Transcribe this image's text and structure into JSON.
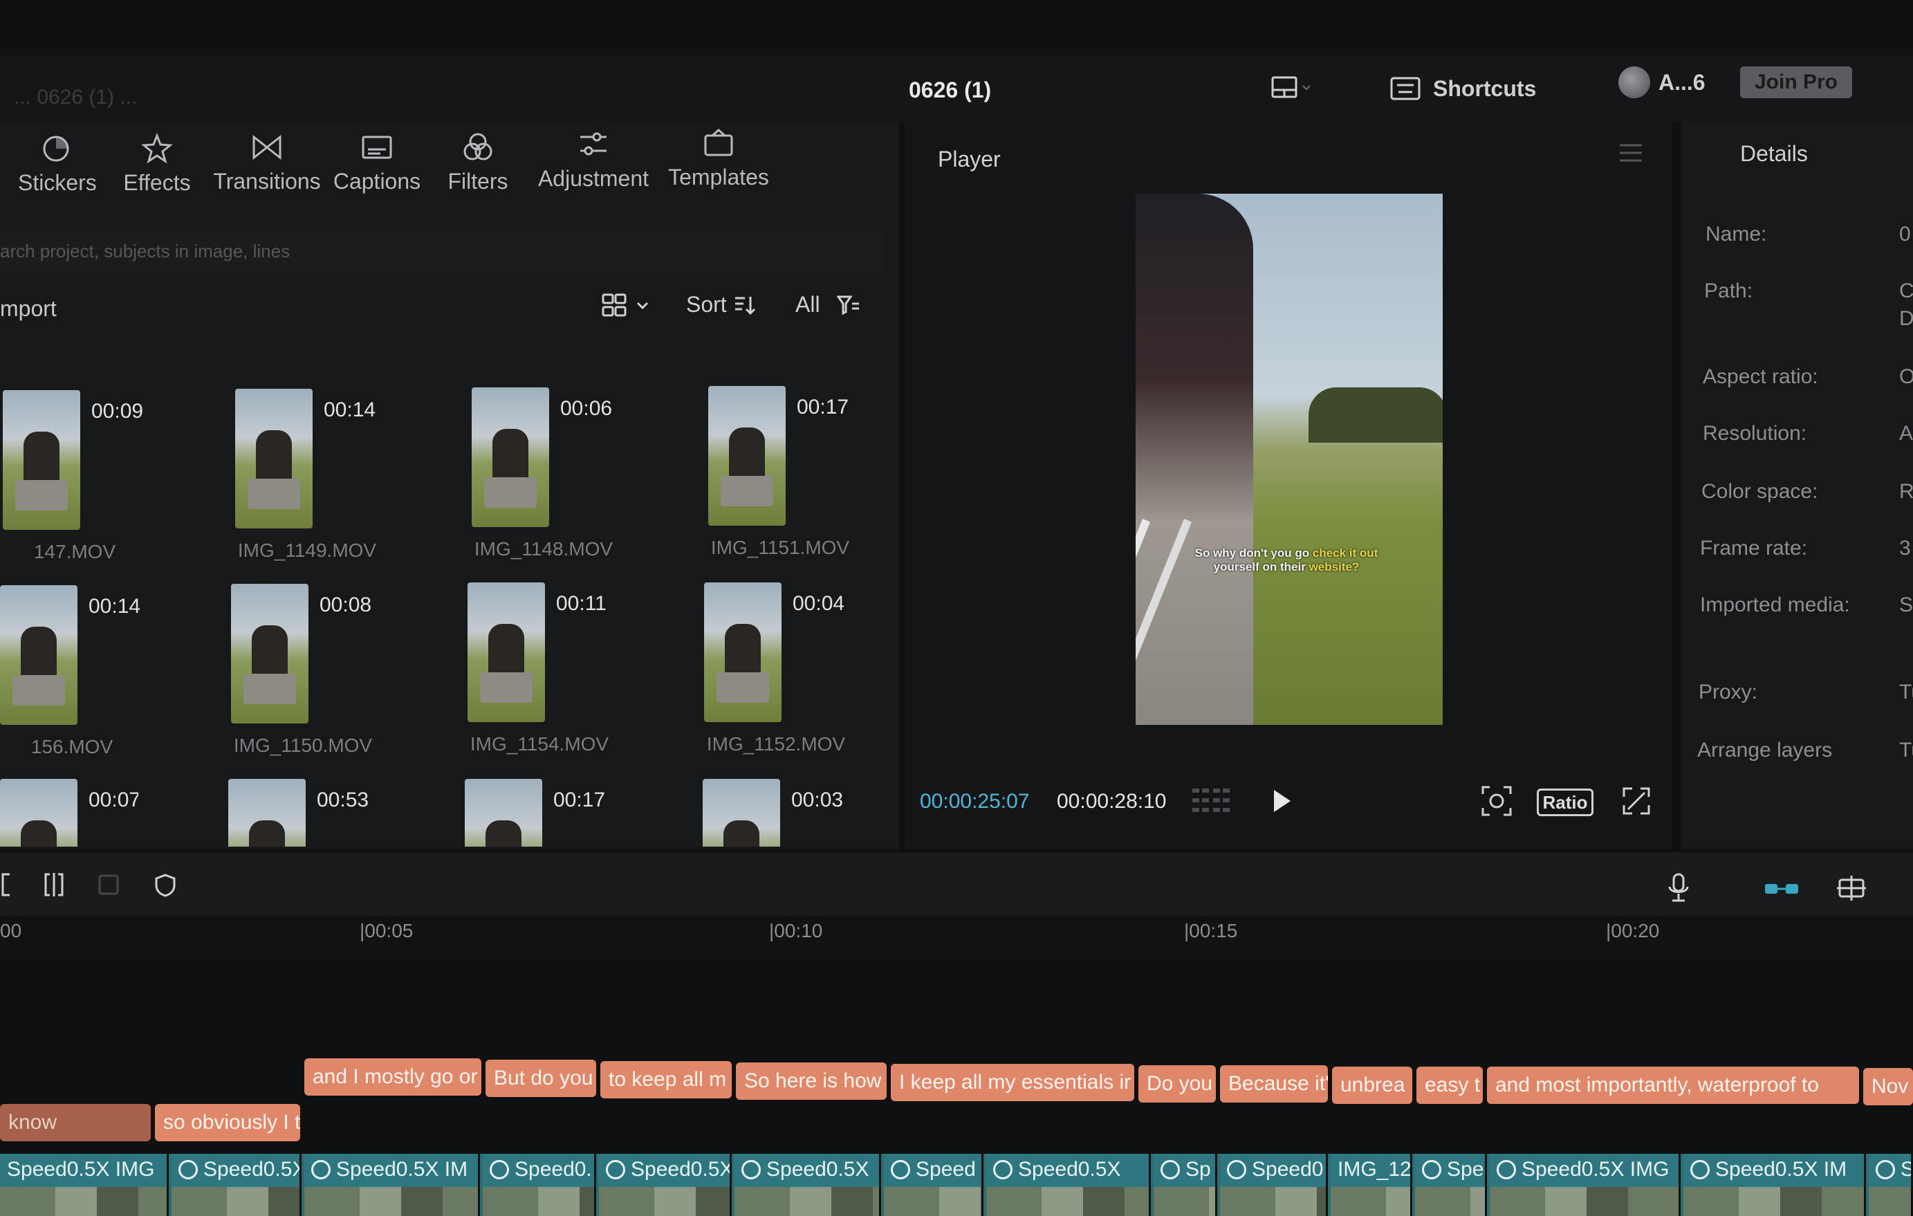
{
  "window": {
    "title": "0626 (1)",
    "ghost_title": "... 0626 (1) ...",
    "shortcuts_label": "Shortcuts",
    "account_label": "A...6",
    "join_pro_label": "Join Pro"
  },
  "tools": [
    {
      "label": "Stickers",
      "icon": "sticker-icon"
    },
    {
      "label": "Effects",
      "icon": "effects-icon"
    },
    {
      "label": "Transitions",
      "icon": "transitions-icon"
    },
    {
      "label": "Captions",
      "icon": "captions-icon"
    },
    {
      "label": "Filters",
      "icon": "filters-icon"
    },
    {
      "label": "Adjustment",
      "icon": "adjustment-icon"
    },
    {
      "label": "Templates",
      "icon": "templates-icon"
    }
  ],
  "search": {
    "placeholder": "arch project, subjects in image, lines"
  },
  "media_panel": {
    "import_label": "mport",
    "sort_label": "Sort",
    "filter_label": "All",
    "items": [
      {
        "name": "147.MOV",
        "duration": "00:09"
      },
      {
        "name": "IMG_1149.MOV",
        "duration": "00:14"
      },
      {
        "name": "IMG_1148.MOV",
        "duration": "00:06"
      },
      {
        "name": "IMG_1151.MOV",
        "duration": "00:17"
      },
      {
        "name": "156.MOV",
        "duration": "00:14"
      },
      {
        "name": "IMG_1150.MOV",
        "duration": "00:08"
      },
      {
        "name": "IMG_1154.MOV",
        "duration": "00:11"
      },
      {
        "name": "IMG_1152.MOV",
        "duration": "00:04"
      },
      {
        "name": "",
        "duration": "00:07"
      },
      {
        "name": "",
        "duration": "00:53"
      },
      {
        "name": "",
        "duration": "00:17"
      },
      {
        "name": "",
        "duration": "00:03"
      }
    ]
  },
  "player": {
    "title": "Player",
    "caption_line1": "So why don't you go",
    "caption_highlight1": "check it out",
    "caption_line2": "yourself on their",
    "caption_highlight2": "website?",
    "current_time": "00:00:25:07",
    "total_time": "00:00:28:10",
    "ratio_label": "Ratio"
  },
  "details": {
    "title": "Details",
    "rows": [
      {
        "label": "Name:",
        "value": "0"
      },
      {
        "label": "Path:",
        "value": "C"
      },
      {
        "label": "",
        "value": "D"
      },
      {
        "label": "Aspect ratio:",
        "value": "O"
      },
      {
        "label": "Resolution:",
        "value": "A"
      },
      {
        "label": "Color space:",
        "value": "R"
      },
      {
        "label": "Frame rate:",
        "value": "3"
      },
      {
        "label": "Imported media:",
        "value": "St"
      },
      {
        "label": "Proxy:",
        "value": "Tu"
      },
      {
        "label": "Arrange layers",
        "value": "Tu"
      }
    ]
  },
  "timeline": {
    "ruler": [
      "00",
      "|00:05",
      "|00:10",
      "|00:15",
      "|00:20"
    ],
    "caption_clips_row1": [
      "and I mostly go or",
      "But do you",
      "to keep all m",
      "So here is how",
      "I keep all my essentials ir",
      "Do you",
      "Because it'",
      "unbrea",
      "easy t",
      "and most importantly, waterproof to",
      "Nov"
    ],
    "caption_clips_row2": [
      "know",
      "so obviously I t"
    ],
    "video_clips": [
      "Speed0.5X  IMG",
      "Speed0.5X",
      "Speed0.5X  IM",
      "Speed0.",
      "Speed0.5X",
      "Speed0.5X",
      "Speed",
      "Speed0.5X",
      "Sp",
      "Speed0",
      "IMG_12",
      "Spe",
      "Speed0.5X  IMG",
      "Speed0.5X  IM",
      "S"
    ]
  }
}
